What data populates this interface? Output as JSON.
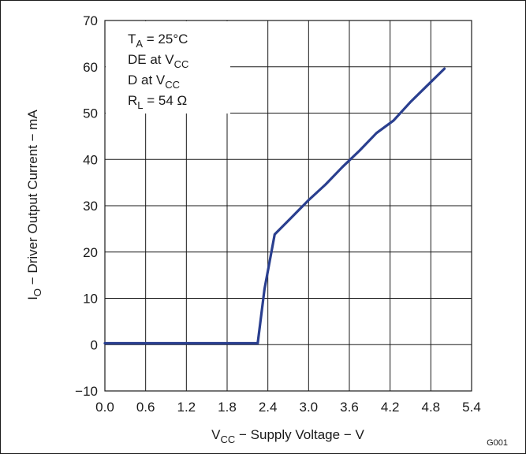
{
  "chart_data": {
    "type": "line",
    "title": "",
    "xlabel": {
      "main": "V",
      "sub": "CC",
      "rest": " − Supply Voltage − V"
    },
    "ylabel": {
      "main": "I",
      "sub": "O",
      "rest": " − Driver Output Current − mA"
    },
    "xlim": [
      0.0,
      5.4
    ],
    "ylim": [
      -10,
      70
    ],
    "x_ticks": [
      "0.0",
      "0.6",
      "1.2",
      "1.8",
      "2.4",
      "3.0",
      "3.6",
      "4.2",
      "4.8",
      "5.4"
    ],
    "y_ticks": [
      "−10",
      "0",
      "10",
      "20",
      "30",
      "40",
      "50",
      "60",
      "70"
    ],
    "x_tick_values": [
      0.0,
      0.6,
      1.2,
      1.8,
      2.4,
      3.0,
      3.6,
      4.2,
      4.8,
      5.4
    ],
    "y_tick_values": [
      -10,
      0,
      10,
      20,
      30,
      40,
      50,
      60,
      70
    ],
    "grid": true,
    "series": [
      {
        "color": "#2a3f8f",
        "x": [
          0.0,
          2.25,
          2.35,
          2.5,
          2.75,
          3.0,
          3.25,
          3.5,
          3.75,
          4.0,
          4.25,
          4.5,
          4.75,
          5.0
        ],
        "y": [
          0.3,
          0.3,
          12.0,
          23.8,
          27.5,
          31.2,
          34.6,
          38.4,
          41.9,
          45.7,
          48.4,
          52.4,
          56.0,
          59.6
        ]
      }
    ],
    "annotation": {
      "lines": [
        {
          "main": "T",
          "sub": "A",
          "rest": " = 25°C"
        },
        {
          "main": "DE at V",
          "sub": "CC",
          "rest": ""
        },
        {
          "main": "D at V",
          "sub": "CC",
          "rest": ""
        },
        {
          "main": "R",
          "sub": "L",
          "rest": " = 54 Ω"
        }
      ]
    },
    "figure_id": "G001"
  }
}
